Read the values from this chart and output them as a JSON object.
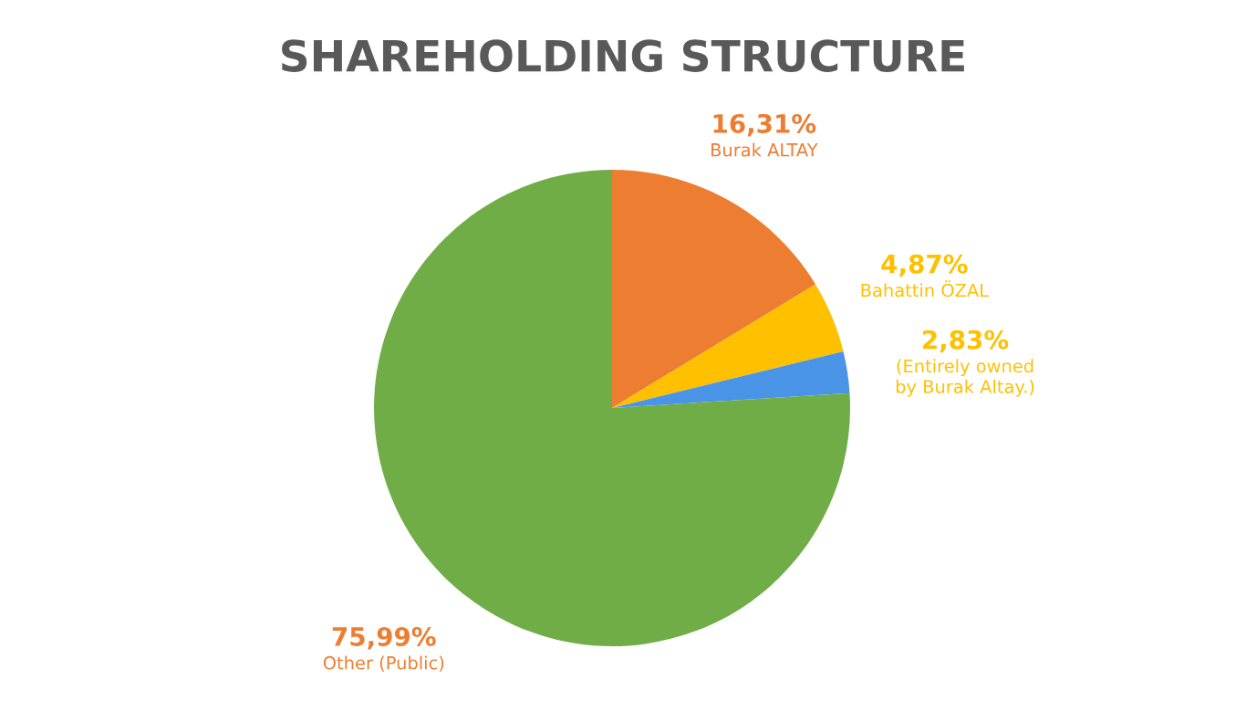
{
  "chart_data": {
    "type": "pie",
    "title": "SHAREHOLDING STRUCTURE",
    "categories": [
      "Burak ALTAY",
      "Bahattin ÖZAL",
      "(Entirely owned\nby Burak Altay.)",
      "Other (Public)"
    ],
    "values": [
      16.31,
      4.87,
      2.83,
      75.99
    ],
    "value_labels": [
      "16,31%",
      "4,87%",
      "2,83%",
      "75,99%"
    ],
    "colors": [
      "#ed7d31",
      "#ffc000",
      "#4a94e8",
      "#70ad47"
    ]
  }
}
